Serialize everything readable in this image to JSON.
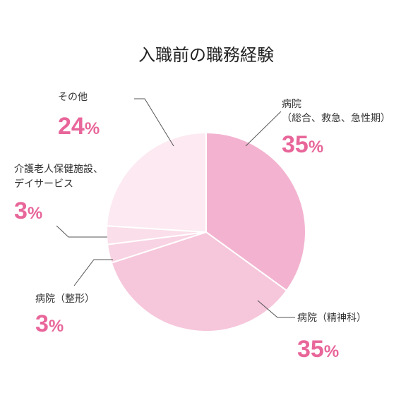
{
  "chart_data": {
    "type": "pie",
    "title": "入職前の職務経験",
    "unit": "%",
    "slices": [
      {
        "name": "病院（総合、救急、急性期）",
        "lines": [
          "病院",
          "（総合、救急、急性期）"
        ],
        "value": 35,
        "label": "35%",
        "color": "#f3b3d0"
      },
      {
        "name": "病院（精神科）",
        "lines": [
          "病院（精神科）"
        ],
        "value": 35,
        "label": "35%",
        "color": "#f6c6db"
      },
      {
        "name": "病院（整形）",
        "lines": [
          "病院（整形）"
        ],
        "value": 3,
        "label": "3%",
        "color": "#f8d3e3"
      },
      {
        "name": "介護老人保健施設、デイサービス",
        "lines": [
          "介護老人保健施設、",
          "デイサービス"
        ],
        "value": 3,
        "label": "3%",
        "color": "#fadeea"
      },
      {
        "name": "その他",
        "lines": [
          "その他"
        ],
        "value": 24,
        "label": "24%",
        "color": "#fce9f1"
      }
    ],
    "accent_color": "#e8669a",
    "leader_color": "#555555"
  }
}
